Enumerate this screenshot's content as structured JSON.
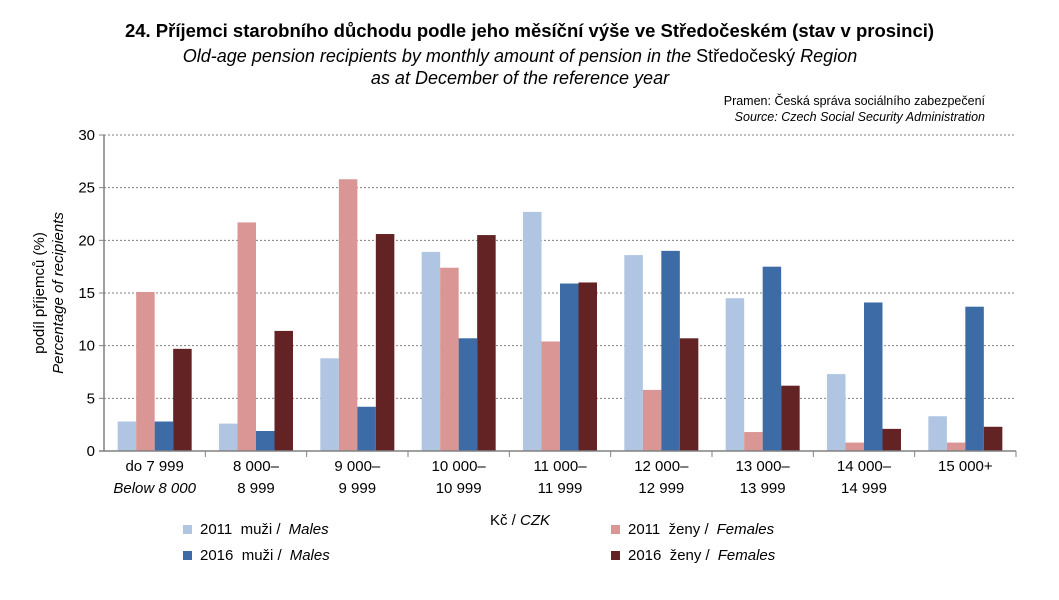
{
  "chart_data": {
    "type": "bar",
    "title": "24. Příjemci starobního důchodu podle jeho měsíční výše ve Středočeském (stav v prosinci)",
    "subtitle_part1": "Old-age pension recipients by monthly amount of pension in the",
    "subtitle_region": "Středočeský",
    "subtitle_part2": "Region",
    "subtitle_line2": "as at December of the reference year",
    "source_cz": "Pramen: Česká správa sociálního zabezpečení",
    "source_en": "Source: Czech Social Security Administration",
    "ylabel": "podíl příjemců (%)",
    "ylabel_en": "Percentage of recipients",
    "xlabel": "Kč /",
    "xlabel_en": "CZK",
    "ylim": [
      0,
      30
    ],
    "yticks": [
      0,
      5,
      10,
      15,
      20,
      25,
      30
    ],
    "grid": true,
    "categories": [
      [
        "do 7 999",
        "Below 8 000"
      ],
      [
        "8 000–",
        "8 999"
      ],
      [
        "9 000–",
        "9 999"
      ],
      [
        "10 000–",
        "10 999"
      ],
      [
        "11 000–",
        "11 999"
      ],
      [
        "12 000–",
        "12 999"
      ],
      [
        "13 000–",
        "13 999"
      ],
      [
        "14 000–",
        "14 999"
      ],
      [
        "15 000+",
        ""
      ]
    ],
    "series": [
      {
        "name": "2011 muži /",
        "name_en": "Males",
        "color": "#AFC5E2",
        "values": [
          2.8,
          2.6,
          8.8,
          18.9,
          22.7,
          18.6,
          14.5,
          7.3,
          3.3
        ]
      },
      {
        "name": "2011 ženy /",
        "name_en": "Females",
        "color": "#DA9694",
        "values": [
          15.1,
          21.7,
          25.8,
          17.4,
          10.4,
          5.8,
          1.8,
          0.8,
          0.8
        ]
      },
      {
        "name": "2016 muži /",
        "name_en": "Males",
        "color": "#3C6BA5",
        "values": [
          2.8,
          1.9,
          4.2,
          10.7,
          15.9,
          19.0,
          17.5,
          14.1,
          13.7
        ]
      },
      {
        "name": "2016 ženy /",
        "name_en": "Females",
        "color": "#632324",
        "values": [
          9.7,
          11.4,
          20.6,
          20.5,
          16.0,
          10.7,
          6.2,
          2.1,
          2.3
        ]
      }
    ],
    "legend_placement": "bottom"
  }
}
